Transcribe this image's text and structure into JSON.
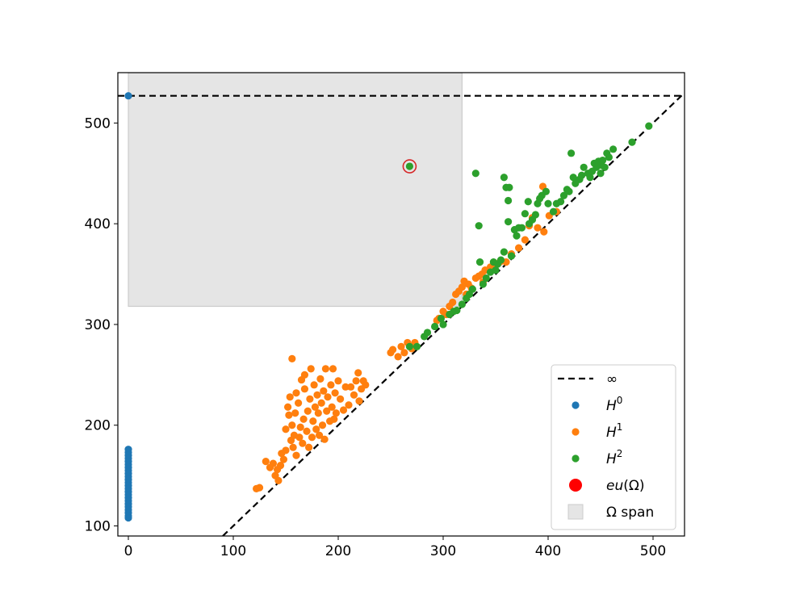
{
  "chart_data": {
    "type": "scatter",
    "title": "",
    "xlabel": "",
    "ylabel": "",
    "xlim": [
      -10,
      530
    ],
    "ylim": [
      90,
      550
    ],
    "xticks": [
      0,
      100,
      200,
      300,
      400,
      500
    ],
    "yticks": [
      100,
      200,
      300,
      400,
      500
    ],
    "grid": false,
    "legend_position": "lower-right",
    "infinity_level": 527,
    "diagonal": true,
    "span": {
      "x": [
        0,
        318
      ],
      "y": [
        318,
        550
      ],
      "label": "Ω span",
      "color": "#e5e5e5"
    },
    "highlight": {
      "label": "eu(Ω)",
      "label_parts": [
        "eu",
        "(Ω)"
      ],
      "x": 268,
      "y": 457,
      "color": "#ff0000"
    },
    "infinity_label": "∞",
    "series": [
      {
        "name": "H0",
        "base": "H",
        "sup": "0",
        "color": "#1f77b4",
        "points": [
          [
            0,
            527
          ],
          [
            0,
            176
          ],
          [
            0,
            173
          ],
          [
            0,
            170
          ],
          [
            0,
            167
          ],
          [
            0,
            164
          ],
          [
            0,
            161
          ],
          [
            0,
            158
          ],
          [
            0,
            155
          ],
          [
            0,
            152
          ],
          [
            0,
            149
          ],
          [
            0,
            146
          ],
          [
            0,
            143
          ],
          [
            0,
            140
          ],
          [
            0,
            137
          ],
          [
            0,
            134
          ],
          [
            0,
            131
          ],
          [
            0,
            128
          ],
          [
            0,
            125
          ],
          [
            0,
            122
          ],
          [
            0,
            119
          ],
          [
            0,
            116
          ],
          [
            0,
            113
          ],
          [
            0,
            110
          ],
          [
            0,
            108
          ]
        ]
      },
      {
        "name": "H1",
        "base": "H",
        "sup": "1",
        "color": "#ff7f0e",
        "points": [
          [
            122,
            137
          ],
          [
            125,
            138
          ],
          [
            131,
            164
          ],
          [
            135,
            158
          ],
          [
            138,
            162
          ],
          [
            140,
            150
          ],
          [
            142,
            156
          ],
          [
            143,
            145
          ],
          [
            145,
            160
          ],
          [
            146,
            172
          ],
          [
            148,
            166
          ],
          [
            150,
            175
          ],
          [
            150,
            196
          ],
          [
            152,
            218
          ],
          [
            153,
            210
          ],
          [
            154,
            228
          ],
          [
            155,
            185
          ],
          [
            156,
            200
          ],
          [
            156,
            266
          ],
          [
            157,
            178
          ],
          [
            158,
            190
          ],
          [
            159,
            212
          ],
          [
            160,
            232
          ],
          [
            160,
            170
          ],
          [
            162,
            222
          ],
          [
            163,
            188
          ],
          [
            164,
            198
          ],
          [
            165,
            245
          ],
          [
            166,
            182
          ],
          [
            167,
            206
          ],
          [
            168,
            236
          ],
          [
            168,
            250
          ],
          [
            170,
            194
          ],
          [
            171,
            214
          ],
          [
            172,
            178
          ],
          [
            173,
            226
          ],
          [
            174,
            256
          ],
          [
            175,
            188
          ],
          [
            176,
            204
          ],
          [
            177,
            240
          ],
          [
            178,
            218
          ],
          [
            179,
            196
          ],
          [
            180,
            230
          ],
          [
            181,
            212
          ],
          [
            182,
            190
          ],
          [
            183,
            246
          ],
          [
            184,
            222
          ],
          [
            185,
            200
          ],
          [
            186,
            234
          ],
          [
            187,
            186
          ],
          [
            188,
            256
          ],
          [
            189,
            214
          ],
          [
            190,
            228
          ],
          [
            192,
            204
          ],
          [
            193,
            240
          ],
          [
            194,
            218
          ],
          [
            195,
            256
          ],
          [
            196,
            206
          ],
          [
            197,
            232
          ],
          [
            198,
            212
          ],
          [
            200,
            244
          ],
          [
            202,
            226
          ],
          [
            205,
            215
          ],
          [
            207,
            238
          ],
          [
            210,
            220
          ],
          [
            212,
            238
          ],
          [
            215,
            230
          ],
          [
            217,
            244
          ],
          [
            219,
            252
          ],
          [
            220,
            224
          ],
          [
            222,
            236
          ],
          [
            224,
            244
          ],
          [
            226,
            240
          ],
          [
            250,
            272
          ],
          [
            252,
            275
          ],
          [
            257,
            268
          ],
          [
            260,
            278
          ],
          [
            263,
            272
          ],
          [
            266,
            282
          ],
          [
            270,
            276
          ],
          [
            273,
            282
          ],
          [
            294,
            304
          ],
          [
            296,
            306
          ],
          [
            300,
            313
          ],
          [
            303,
            310
          ],
          [
            306,
            318
          ],
          [
            309,
            322
          ],
          [
            312,
            330
          ],
          [
            315,
            333
          ],
          [
            318,
            337
          ],
          [
            320,
            343
          ],
          [
            324,
            340
          ],
          [
            327,
            336
          ],
          [
            331,
            346
          ],
          [
            334,
            348
          ],
          [
            337,
            350
          ],
          [
            340,
            354
          ],
          [
            345,
            357
          ],
          [
            349,
            360
          ],
          [
            354,
            362
          ],
          [
            360,
            362
          ],
          [
            365,
            370
          ],
          [
            372,
            376
          ],
          [
            378,
            384
          ],
          [
            382,
            398
          ],
          [
            390,
            396
          ],
          [
            396,
            392
          ],
          [
            401,
            408
          ],
          [
            408,
            412
          ],
          [
            385,
            406
          ],
          [
            395,
            437
          ],
          [
            322,
            330
          ],
          [
            338,
            342
          ]
        ]
      },
      {
        "name": "H2",
        "base": "H",
        "sup": "2",
        "color": "#2ca02c",
        "points": [
          [
            268,
            457
          ],
          [
            268,
            278
          ],
          [
            275,
            278
          ],
          [
            282,
            288
          ],
          [
            285,
            292
          ],
          [
            292,
            298
          ],
          [
            298,
            306
          ],
          [
            300,
            300
          ],
          [
            306,
            310
          ],
          [
            310,
            313
          ],
          [
            313,
            314
          ],
          [
            318,
            320
          ],
          [
            322,
            326
          ],
          [
            325,
            330
          ],
          [
            328,
            335
          ],
          [
            331,
            450
          ],
          [
            334,
            398
          ],
          [
            335,
            362
          ],
          [
            338,
            340
          ],
          [
            341,
            346
          ],
          [
            345,
            352
          ],
          [
            348,
            362
          ],
          [
            350,
            354
          ],
          [
            352,
            360
          ],
          [
            355,
            364
          ],
          [
            358,
            446
          ],
          [
            360,
            436
          ],
          [
            362,
            423
          ],
          [
            363,
            436
          ],
          [
            358,
            372
          ],
          [
            362,
            402
          ],
          [
            365,
            368
          ],
          [
            368,
            394
          ],
          [
            370,
            388
          ],
          [
            372,
            396
          ],
          [
            375,
            396
          ],
          [
            378,
            410
          ],
          [
            381,
            422
          ],
          [
            382,
            400
          ],
          [
            385,
            404
          ],
          [
            388,
            409
          ],
          [
            390,
            420
          ],
          [
            392,
            425
          ],
          [
            394,
            428
          ],
          [
            398,
            432
          ],
          [
            400,
            420
          ],
          [
            405,
            412
          ],
          [
            408,
            420
          ],
          [
            412,
            422
          ],
          [
            415,
            428
          ],
          [
            418,
            434
          ],
          [
            420,
            432
          ],
          [
            422,
            470
          ],
          [
            424,
            446
          ],
          [
            426,
            440
          ],
          [
            430,
            444
          ],
          [
            432,
            448
          ],
          [
            434,
            456
          ],
          [
            438,
            450
          ],
          [
            440,
            446
          ],
          [
            442,
            452
          ],
          [
            444,
            460
          ],
          [
            446,
            456
          ],
          [
            448,
            462
          ],
          [
            450,
            450
          ],
          [
            451,
            458
          ],
          [
            452,
            463
          ],
          [
            454,
            456
          ],
          [
            456,
            470
          ],
          [
            458,
            466
          ],
          [
            462,
            474
          ],
          [
            480,
            481
          ],
          [
            496,
            497
          ]
        ]
      }
    ]
  }
}
